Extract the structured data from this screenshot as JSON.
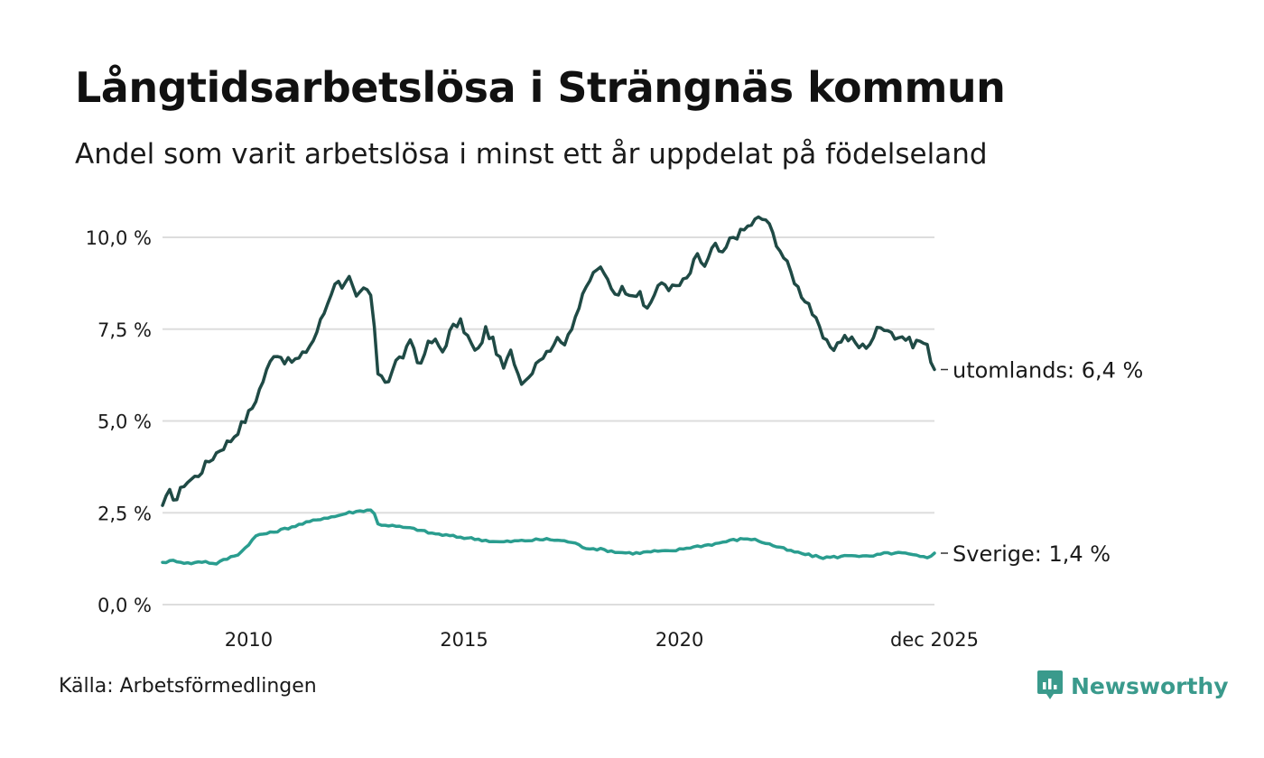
{
  "header": {
    "title": "Långtidsarbetslösa i Strängnäs kommun",
    "subtitle": "Andel som varit arbetslösa i minst ett år uppdelat på födelseland"
  },
  "footer": {
    "source": "Källa: Arbetsförmedlingen",
    "brand": "Newsworthy"
  },
  "colors": {
    "utomlands": "#1f4a45",
    "sverige": "#2a9d8f",
    "grid": "#dddddd",
    "brand": "#3a9a8c"
  },
  "chart_data": {
    "type": "line",
    "title": "Långtidsarbetslösa i Strängnäs kommun",
    "subtitle": "Andel som varit arbetslösa i minst ett år uppdelat på födelseland",
    "xlabel": "",
    "ylabel": "",
    "x_range": [
      2008.0,
      2025.917
    ],
    "ylim": [
      0,
      10.8
    ],
    "y_ticks": [
      0,
      2.5,
      5,
      7.5,
      10
    ],
    "y_tick_labels": [
      "0,0 %",
      "2,5 %",
      "5,0 %",
      "7,5 %",
      "10,0 %"
    ],
    "x_ticks": [
      2010,
      2015,
      2020,
      2025.917
    ],
    "x_tick_labels": [
      "2010",
      "2015",
      "2020",
      "dec 2025"
    ],
    "grid": true,
    "series": [
      {
        "name": "utomlands",
        "end_label": "utomlands: 6,4 %",
        "knots": [
          [
            2008.0,
            2.7
          ],
          [
            2008.2,
            3.1
          ],
          [
            2008.3,
            2.8
          ],
          [
            2008.5,
            3.3
          ],
          [
            2008.8,
            3.5
          ],
          [
            2009.0,
            3.8
          ],
          [
            2009.3,
            4.2
          ],
          [
            2009.6,
            4.5
          ],
          [
            2009.9,
            5.0
          ],
          [
            2010.1,
            5.4
          ],
          [
            2010.3,
            6.0
          ],
          [
            2010.6,
            6.9
          ],
          [
            2010.9,
            6.6
          ],
          [
            2011.2,
            6.7
          ],
          [
            2011.5,
            7.2
          ],
          [
            2011.8,
            8.1
          ],
          [
            2012.0,
            8.8
          ],
          [
            2012.2,
            8.7
          ],
          [
            2012.3,
            9.0
          ],
          [
            2012.5,
            8.3
          ],
          [
            2012.7,
            8.6
          ],
          [
            2012.9,
            8.3
          ],
          [
            2012.95,
            6.1
          ],
          [
            2013.1,
            6.3
          ],
          [
            2013.2,
            6.0
          ],
          [
            2013.4,
            6.6
          ],
          [
            2013.6,
            6.8
          ],
          [
            2013.8,
            7.2
          ],
          [
            2013.95,
            6.4
          ],
          [
            2014.1,
            7.0
          ],
          [
            2014.3,
            7.2
          ],
          [
            2014.5,
            6.9
          ],
          [
            2014.7,
            7.5
          ],
          [
            2014.9,
            7.7
          ],
          [
            2015.0,
            7.5
          ],
          [
            2015.2,
            7.0
          ],
          [
            2015.3,
            6.8
          ],
          [
            2015.5,
            7.5
          ],
          [
            2015.7,
            7.1
          ],
          [
            2015.9,
            6.4
          ],
          [
            2016.1,
            6.9
          ],
          [
            2016.3,
            6.1
          ],
          [
            2016.5,
            6.2
          ],
          [
            2016.7,
            6.7
          ],
          [
            2016.9,
            6.8
          ],
          [
            2017.1,
            7.2
          ],
          [
            2017.3,
            7.1
          ],
          [
            2017.5,
            7.6
          ],
          [
            2017.7,
            8.2
          ],
          [
            2017.9,
            8.8
          ],
          [
            2018.1,
            9.2
          ],
          [
            2018.3,
            8.9
          ],
          [
            2018.5,
            8.5
          ],
          [
            2018.7,
            8.6
          ],
          [
            2018.9,
            8.5
          ],
          [
            2019.1,
            8.4
          ],
          [
            2019.2,
            8.0
          ],
          [
            2019.4,
            8.4
          ],
          [
            2019.6,
            8.8
          ],
          [
            2019.8,
            8.6
          ],
          [
            2020.0,
            8.7
          ],
          [
            2020.2,
            8.9
          ],
          [
            2020.4,
            9.5
          ],
          [
            2020.6,
            9.2
          ],
          [
            2020.8,
            9.8
          ],
          [
            2021.0,
            9.5
          ],
          [
            2021.2,
            10.0
          ],
          [
            2021.4,
            10.1
          ],
          [
            2021.6,
            10.3
          ],
          [
            2021.8,
            10.5
          ],
          [
            2022.0,
            10.5
          ],
          [
            2022.2,
            10.0
          ],
          [
            2022.4,
            9.5
          ],
          [
            2022.6,
            9.0
          ],
          [
            2022.8,
            8.5
          ],
          [
            2023.0,
            8.2
          ],
          [
            2023.2,
            7.6
          ],
          [
            2023.4,
            7.1
          ],
          [
            2023.6,
            7.0
          ],
          [
            2023.8,
            7.3
          ],
          [
            2024.0,
            7.2
          ],
          [
            2024.2,
            7.0
          ],
          [
            2024.4,
            7.1
          ],
          [
            2024.6,
            7.5
          ],
          [
            2024.8,
            7.6
          ],
          [
            2025.0,
            7.3
          ],
          [
            2025.2,
            7.3
          ],
          [
            2025.4,
            7.1
          ],
          [
            2025.6,
            7.2
          ],
          [
            2025.75,
            7.0
          ],
          [
            2025.917,
            6.4
          ]
        ]
      },
      {
        "name": "Sverige",
        "end_label": "Sverige: 1,4 %",
        "knots": [
          [
            2008.0,
            1.15
          ],
          [
            2008.3,
            1.2
          ],
          [
            2008.6,
            1.12
          ],
          [
            2009.0,
            1.18
          ],
          [
            2009.2,
            1.1
          ],
          [
            2009.5,
            1.25
          ],
          [
            2009.8,
            1.4
          ],
          [
            2010.0,
            1.65
          ],
          [
            2010.2,
            1.9
          ],
          [
            2010.5,
            1.95
          ],
          [
            2010.8,
            2.05
          ],
          [
            2011.1,
            2.15
          ],
          [
            2011.4,
            2.25
          ],
          [
            2011.7,
            2.35
          ],
          [
            2012.0,
            2.4
          ],
          [
            2012.3,
            2.5
          ],
          [
            2012.6,
            2.55
          ],
          [
            2012.9,
            2.6
          ],
          [
            2012.95,
            2.2
          ],
          [
            2013.3,
            2.15
          ],
          [
            2013.6,
            2.1
          ],
          [
            2013.9,
            2.05
          ],
          [
            2014.2,
            1.95
          ],
          [
            2014.5,
            1.9
          ],
          [
            2014.8,
            1.85
          ],
          [
            2015.2,
            1.8
          ],
          [
            2015.5,
            1.75
          ],
          [
            2015.8,
            1.7
          ],
          [
            2016.1,
            1.72
          ],
          [
            2016.5,
            1.75
          ],
          [
            2016.9,
            1.78
          ],
          [
            2017.2,
            1.75
          ],
          [
            2017.5,
            1.7
          ],
          [
            2017.8,
            1.55
          ],
          [
            2018.2,
            1.5
          ],
          [
            2018.6,
            1.42
          ],
          [
            2019.0,
            1.4
          ],
          [
            2019.4,
            1.45
          ],
          [
            2019.8,
            1.45
          ],
          [
            2020.2,
            1.55
          ],
          [
            2020.5,
            1.6
          ],
          [
            2020.8,
            1.65
          ],
          [
            2021.2,
            1.75
          ],
          [
            2021.6,
            1.8
          ],
          [
            2021.8,
            1.75
          ],
          [
            2022.2,
            1.6
          ],
          [
            2022.6,
            1.45
          ],
          [
            2023.0,
            1.35
          ],
          [
            2023.3,
            1.28
          ],
          [
            2023.7,
            1.3
          ],
          [
            2024.0,
            1.35
          ],
          [
            2024.4,
            1.3
          ],
          [
            2024.8,
            1.4
          ],
          [
            2025.2,
            1.4
          ],
          [
            2025.6,
            1.3
          ],
          [
            2025.75,
            1.28
          ],
          [
            2025.917,
            1.4
          ]
        ]
      }
    ]
  }
}
